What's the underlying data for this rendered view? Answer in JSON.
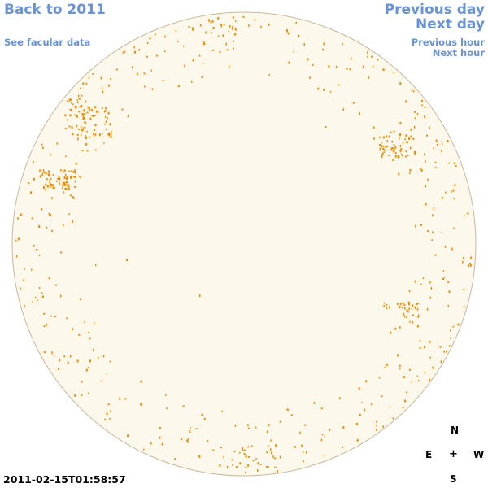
{
  "nav": {
    "back_label": "Back to 2011",
    "facular_label": "See facular data",
    "prev_day_label": "Previous day",
    "next_day_label": "Next day",
    "prev_hour_label": "Previous hour",
    "next_hour_label": "Next hour"
  },
  "compass": {
    "north": "N",
    "east": "E",
    "west": "W",
    "south": "S",
    "center": "+"
  },
  "timestamp": "2011-02-15T01:58:57",
  "colors": {
    "link": "#6a93d6",
    "disk_fill": "#fdf8ec",
    "disk_edge": "#c8b89a",
    "facula": "#e8900a"
  }
}
